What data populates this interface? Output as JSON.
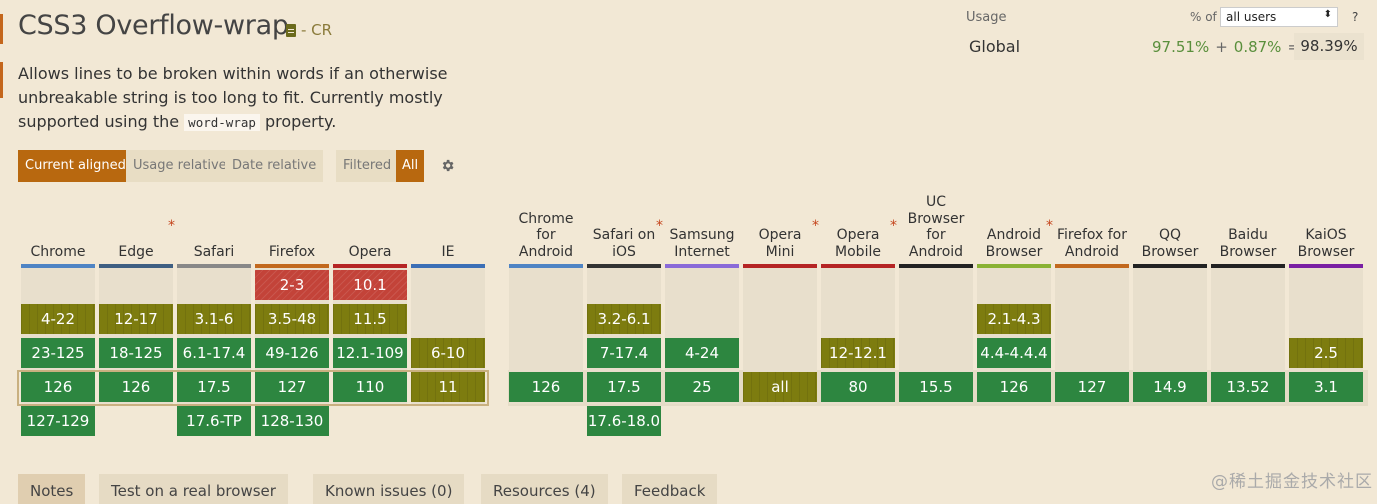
{
  "title": "CSS3 Overflow-wrap",
  "status": "- CR",
  "description": {
    "part1": "Allows lines to be broken within words if an otherwise unbreakable string is too long to fit. Currently mostly supported using the ",
    "code": "word-wrap",
    "part2": " property."
  },
  "usage": {
    "label": "Usage",
    "pct_of": "% of",
    "users_select": "all users",
    "help": "?",
    "global_label": "Global",
    "supported": "97.51%",
    "plus": "+",
    "partial": "0.87%",
    "equals": "=",
    "total": "98.39%"
  },
  "view_buttons": {
    "current_aligned": "Current aligned",
    "usage_relative": "Usage relative",
    "date_relative": "Date relative",
    "filtered": "Filtered",
    "all": "All"
  },
  "colors": {
    "supported": "#2d8640",
    "partial": "#7d7c0f",
    "unsupported": "#c34339",
    "accent": "#b8680f",
    "background": "#f2e8d5"
  },
  "browsers": [
    {
      "id": "chrome",
      "name": "Chrome",
      "star": false,
      "color": "#4f84c4",
      "rows": [
        [
          "",
          ""
        ],
        [
          "4-22",
          "y"
        ],
        [
          "23-125",
          "g"
        ],
        [
          "126",
          "g"
        ],
        [
          "127-129",
          "g"
        ]
      ]
    },
    {
      "id": "edge",
      "name": "Edge",
      "star": true,
      "color": "#3f5f82",
      "rows": [
        [
          "",
          ""
        ],
        [
          "12-17",
          "y"
        ],
        [
          "18-125",
          "g"
        ],
        [
          "126",
          "g"
        ],
        [
          "",
          ""
        ]
      ]
    },
    {
      "id": "safari",
      "name": "Safari",
      "star": false,
      "color": "#888888",
      "rows": [
        [
          "",
          ""
        ],
        [
          "3.1-6",
          "y"
        ],
        [
          "6.1-17.4",
          "g"
        ],
        [
          "17.5",
          "g"
        ],
        [
          "17.6-TP",
          "g"
        ]
      ]
    },
    {
      "id": "firefox",
      "name": "Firefox",
      "star": false,
      "color": "#c2681d",
      "rows": [
        [
          "2-3",
          "r"
        ],
        [
          "3.5-48",
          "y"
        ],
        [
          "49-126",
          "g"
        ],
        [
          "127",
          "g"
        ],
        [
          "128-130",
          "g"
        ]
      ]
    },
    {
      "id": "opera",
      "name": "Opera",
      "star": false,
      "color": "#b52424",
      "rows": [
        [
          "10.1",
          "r"
        ],
        [
          "11.5",
          "y"
        ],
        [
          "12.1-109",
          "g"
        ],
        [
          "110",
          "g"
        ],
        [
          "",
          ""
        ]
      ]
    },
    {
      "id": "ie",
      "name": "IE",
      "star": false,
      "color": "#3c6fb6",
      "rows": [
        [
          "",
          ""
        ],
        [
          "",
          ""
        ],
        [
          "6-10",
          "y"
        ],
        [
          "11",
          "y"
        ],
        [
          "",
          ""
        ]
      ]
    },
    {
      "id": "chrome-android",
      "name": "Chrome for Android",
      "star": false,
      "color": "#4f84c4",
      "rows": [
        [
          "",
          ""
        ],
        [
          "",
          ""
        ],
        [
          "",
          ""
        ],
        [
          "126",
          "g"
        ],
        [
          "",
          ""
        ]
      ]
    },
    {
      "id": "safari-ios",
      "name": "Safari on iOS",
      "star": true,
      "color": "#333333",
      "rows": [
        [
          "",
          ""
        ],
        [
          "3.2-6.1",
          "y"
        ],
        [
          "7-17.4",
          "g"
        ],
        [
          "17.5",
          "g"
        ],
        [
          "17.6-18.0",
          "g"
        ]
      ]
    },
    {
      "id": "samsung",
      "name": "Samsung Internet",
      "star": false,
      "color": "#8a6ad8",
      "rows": [
        [
          "",
          ""
        ],
        [
          "",
          ""
        ],
        [
          "4-24",
          "g"
        ],
        [
          "25",
          "g"
        ],
        [
          "",
          ""
        ]
      ]
    },
    {
      "id": "opera-mini",
      "name": "Opera Mini",
      "star": true,
      "color": "#b52424",
      "rows": [
        [
          "",
          ""
        ],
        [
          "",
          ""
        ],
        [
          "",
          ""
        ],
        [
          "all",
          "y"
        ],
        [
          "",
          ""
        ]
      ]
    },
    {
      "id": "opera-mobile",
      "name": "Opera Mobile",
      "star": true,
      "color": "#b52424",
      "rows": [
        [
          "",
          ""
        ],
        [
          "",
          ""
        ],
        [
          "12-12.1",
          "y"
        ],
        [
          "80",
          "g"
        ],
        [
          "",
          ""
        ]
      ]
    },
    {
      "id": "uc",
      "name": "UC Browser for Android",
      "star": false,
      "color": "#222222",
      "rows": [
        [
          "",
          ""
        ],
        [
          "",
          ""
        ],
        [
          "",
          ""
        ],
        [
          "15.5",
          "g"
        ],
        [
          "",
          ""
        ]
      ]
    },
    {
      "id": "android",
      "name": "Android Browser",
      "star": true,
      "color": "#8ab234",
      "rows": [
        [
          "",
          ""
        ],
        [
          "2.1-4.3",
          "y"
        ],
        [
          "4.4-4.4.4",
          "g"
        ],
        [
          "126",
          "g"
        ],
        [
          "",
          ""
        ]
      ]
    },
    {
      "id": "firefox-android",
      "name": "Firefox for Android",
      "star": false,
      "color": "#c2681d",
      "rows": [
        [
          "",
          ""
        ],
        [
          "",
          ""
        ],
        [
          "",
          ""
        ],
        [
          "127",
          "g"
        ],
        [
          "",
          ""
        ]
      ]
    },
    {
      "id": "qq",
      "name": "QQ Browser",
      "star": false,
      "color": "#222222",
      "rows": [
        [
          "",
          ""
        ],
        [
          "",
          ""
        ],
        [
          "",
          ""
        ],
        [
          "14.9",
          "g"
        ],
        [
          "",
          ""
        ]
      ]
    },
    {
      "id": "baidu",
      "name": "Baidu Browser",
      "star": false,
      "color": "#222222",
      "rows": [
        [
          "",
          ""
        ],
        [
          "",
          ""
        ],
        [
          "",
          ""
        ],
        [
          "13.52",
          "g"
        ],
        [
          "",
          ""
        ]
      ]
    },
    {
      "id": "kaios",
      "name": "KaiOS Browser",
      "star": false,
      "color": "#7a1fa3",
      "rows": [
        [
          "",
          ""
        ],
        [
          "",
          ""
        ],
        [
          "2.5",
          "y"
        ],
        [
          "3.1",
          "g"
        ],
        [
          "",
          ""
        ]
      ]
    }
  ],
  "tabs": [
    "Notes",
    "Test on a real browser",
    "Known issues (0)",
    "Resources (4)",
    "Feedback"
  ],
  "watermark": "@稀土掘金技术社区"
}
